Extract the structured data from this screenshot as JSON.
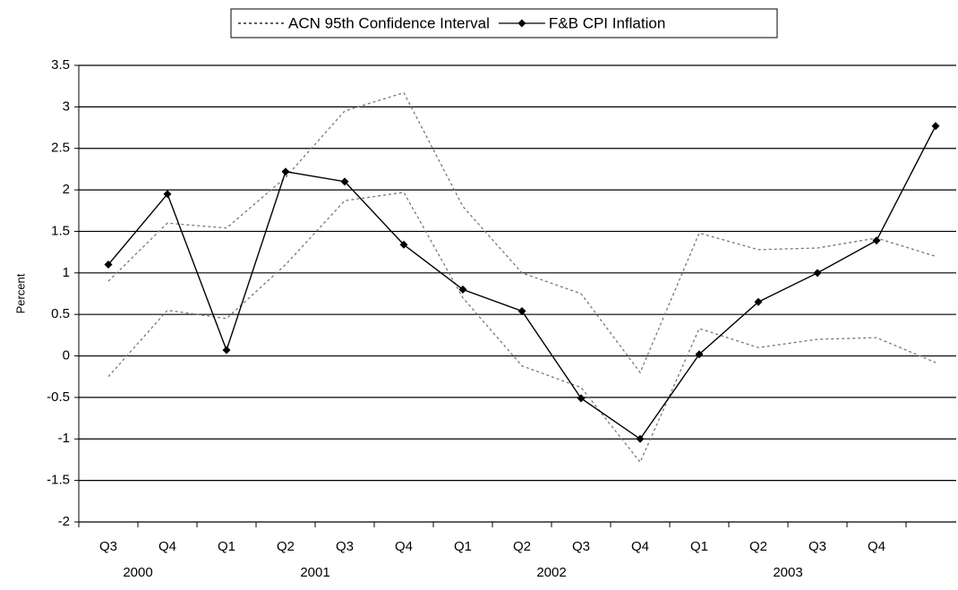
{
  "chart_data": {
    "type": "line",
    "y_label": "Percent",
    "categories": [
      "Q3",
      "Q4",
      "Q1",
      "Q2",
      "Q3",
      "Q4",
      "Q1",
      "Q2",
      "Q3",
      "Q4",
      "Q1",
      "Q2",
      "Q3",
      "Q4",
      null
    ],
    "groups": [
      {
        "name": "2000",
        "span": 2
      },
      {
        "name": "2001",
        "span": 4
      },
      {
        "name": "2002",
        "span": 4
      },
      {
        "name": "2003",
        "span": 4
      }
    ],
    "series": [
      {
        "name": "ACN 95th Confidence Interval",
        "color": "#777777",
        "style": "dotted",
        "upper": [
          0.9,
          1.6,
          1.54,
          2.15,
          2.95,
          3.17,
          1.8,
          1.0,
          0.75,
          -0.2,
          1.48,
          1.28,
          1.3,
          1.42,
          1.2
        ],
        "lower": [
          -0.25,
          0.55,
          0.45,
          1.1,
          1.87,
          1.97,
          0.7,
          -0.12,
          -0.38,
          -1.28,
          0.33,
          0.1,
          0.2,
          0.22,
          -0.08
        ]
      },
      {
        "name": "F&B CPI Inflation",
        "color": "#000000",
        "style": "solid",
        "marker": "diamond",
        "values": [
          1.1,
          1.95,
          0.07,
          2.22,
          2.1,
          1.34,
          0.8,
          0.54,
          -0.51,
          -1.0,
          0.02,
          0.65,
          1.0,
          1.39,
          2.77
        ]
      }
    ],
    "ylim": [
      -2,
      3.5
    ],
    "yticks": [
      -2,
      -1.5,
      -1,
      -0.5,
      0,
      0.5,
      1,
      1.5,
      2,
      2.5,
      3,
      3.5
    ],
    "grid": true,
    "legend": "top"
  }
}
